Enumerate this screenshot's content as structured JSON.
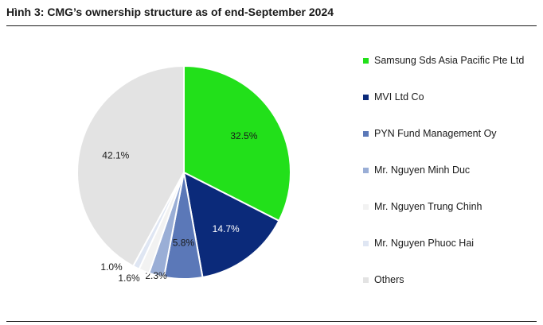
{
  "title": "Hình 3: CMG’s ownership structure as of end-September 2024",
  "chart_data": {
    "type": "pie",
    "title": "Hình 3: CMG’s ownership structure as of end-September 2024",
    "slices": [
      {
        "label": "Samsung Sds Asia Pacific Pte Ltd",
        "value": 32.5,
        "display": "32.5%",
        "color": "#22e01a"
      },
      {
        "label": "MVI Ltd Co",
        "value": 14.7,
        "display": "14.7%",
        "color": "#0b2a7a"
      },
      {
        "label": "PYN Fund Management Oy",
        "value": 5.8,
        "display": "5.8%",
        "color": "#5b78b8"
      },
      {
        "label": "Mr. Nguyen Minh Duc",
        "value": 2.3,
        "display": "2.3%",
        "color": "#9aaed6"
      },
      {
        "label": "Mr. Nguyen Trung Chinh",
        "value": 1.6,
        "display": "1.6%",
        "color": "#f2f2f2"
      },
      {
        "label": "Mr. Nguyen Phuoc Hai",
        "value": 1.0,
        "display": "1.0%",
        "color": "#dfe6f3"
      },
      {
        "label": "Others",
        "value": 42.1,
        "display": "42.1%",
        "color": "#e3e3e3"
      }
    ],
    "legend_position": "right",
    "start_angle": "12 o'clock, clockwise"
  }
}
